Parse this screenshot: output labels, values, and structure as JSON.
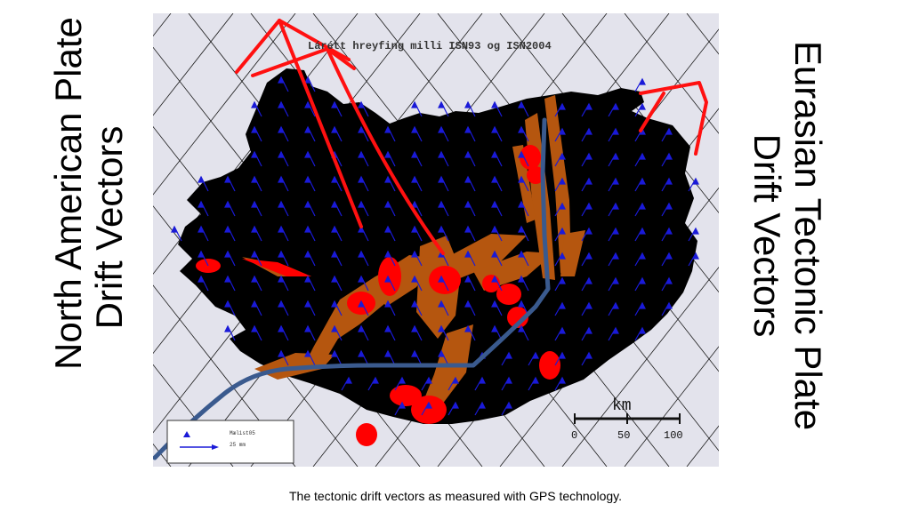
{
  "slide": {
    "left_title_line1": "North American Plate",
    "left_title_line2": "Drift Vectors",
    "right_title_line1": "Eurasian Tectonic Plate",
    "right_title_line2": "Drift Vectors",
    "caption": "The tectonic drift vectors as measured with GPS technology."
  },
  "map": {
    "title": "Lárétt hreyfing milli ISN93 og ISN2004",
    "scale": {
      "unit": "km",
      "ticks": [
        "0",
        "50",
        "100"
      ]
    },
    "legend": {
      "marker_label": "Mælist05",
      "arrow_label": "25 mm"
    },
    "colors": {
      "background": "#e3e3ec",
      "land": "#ecec8c",
      "glacier": "#ffffff",
      "fissure_zone": "#b5560f",
      "volcano": "#ff0000",
      "vector": "#1a1ad8",
      "plate_boundary": "#3a5a8e",
      "plate_arrow": "#ff1010"
    }
  }
}
